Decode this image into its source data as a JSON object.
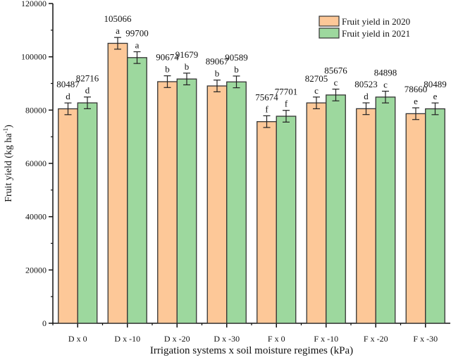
{
  "chart_data": {
    "type": "bar",
    "title": "",
    "xlabel": "Irrigation systems x soil moisture regimes (kPa)",
    "ylabel": "Fruit yield (kg ha",
    "ylabel_superscript": "-1",
    "ylabel_close": ")",
    "ylim": [
      0,
      120000
    ],
    "yticks": [
      0,
      20000,
      40000,
      60000,
      80000,
      100000,
      120000
    ],
    "grid": false,
    "legend_position": "top-right",
    "categories": [
      "D x 0",
      "D x -10",
      "D x -20",
      "D x -30",
      "F x 0",
      "F x -10",
      "F x -20",
      "F x -30"
    ],
    "series": [
      {
        "name": "Fruit yield in 2020",
        "color": "#FDC898",
        "values": [
          80487,
          105066,
          90674,
          89067,
          75674,
          82705,
          80523,
          78660
        ],
        "letters": [
          "d",
          "a",
          "b",
          "b",
          "f",
          "c",
          "d",
          "e"
        ]
      },
      {
        "name": "Fruit yield in 2021",
        "color": "#9DD89E",
        "values": [
          82716,
          99700,
          91679,
          90589,
          77701,
          85676,
          84898,
          80489
        ],
        "letters": [
          "d",
          "a",
          "b",
          "b",
          "f",
          "c",
          "c",
          "e"
        ]
      }
    ],
    "error_bar": 2200
  }
}
